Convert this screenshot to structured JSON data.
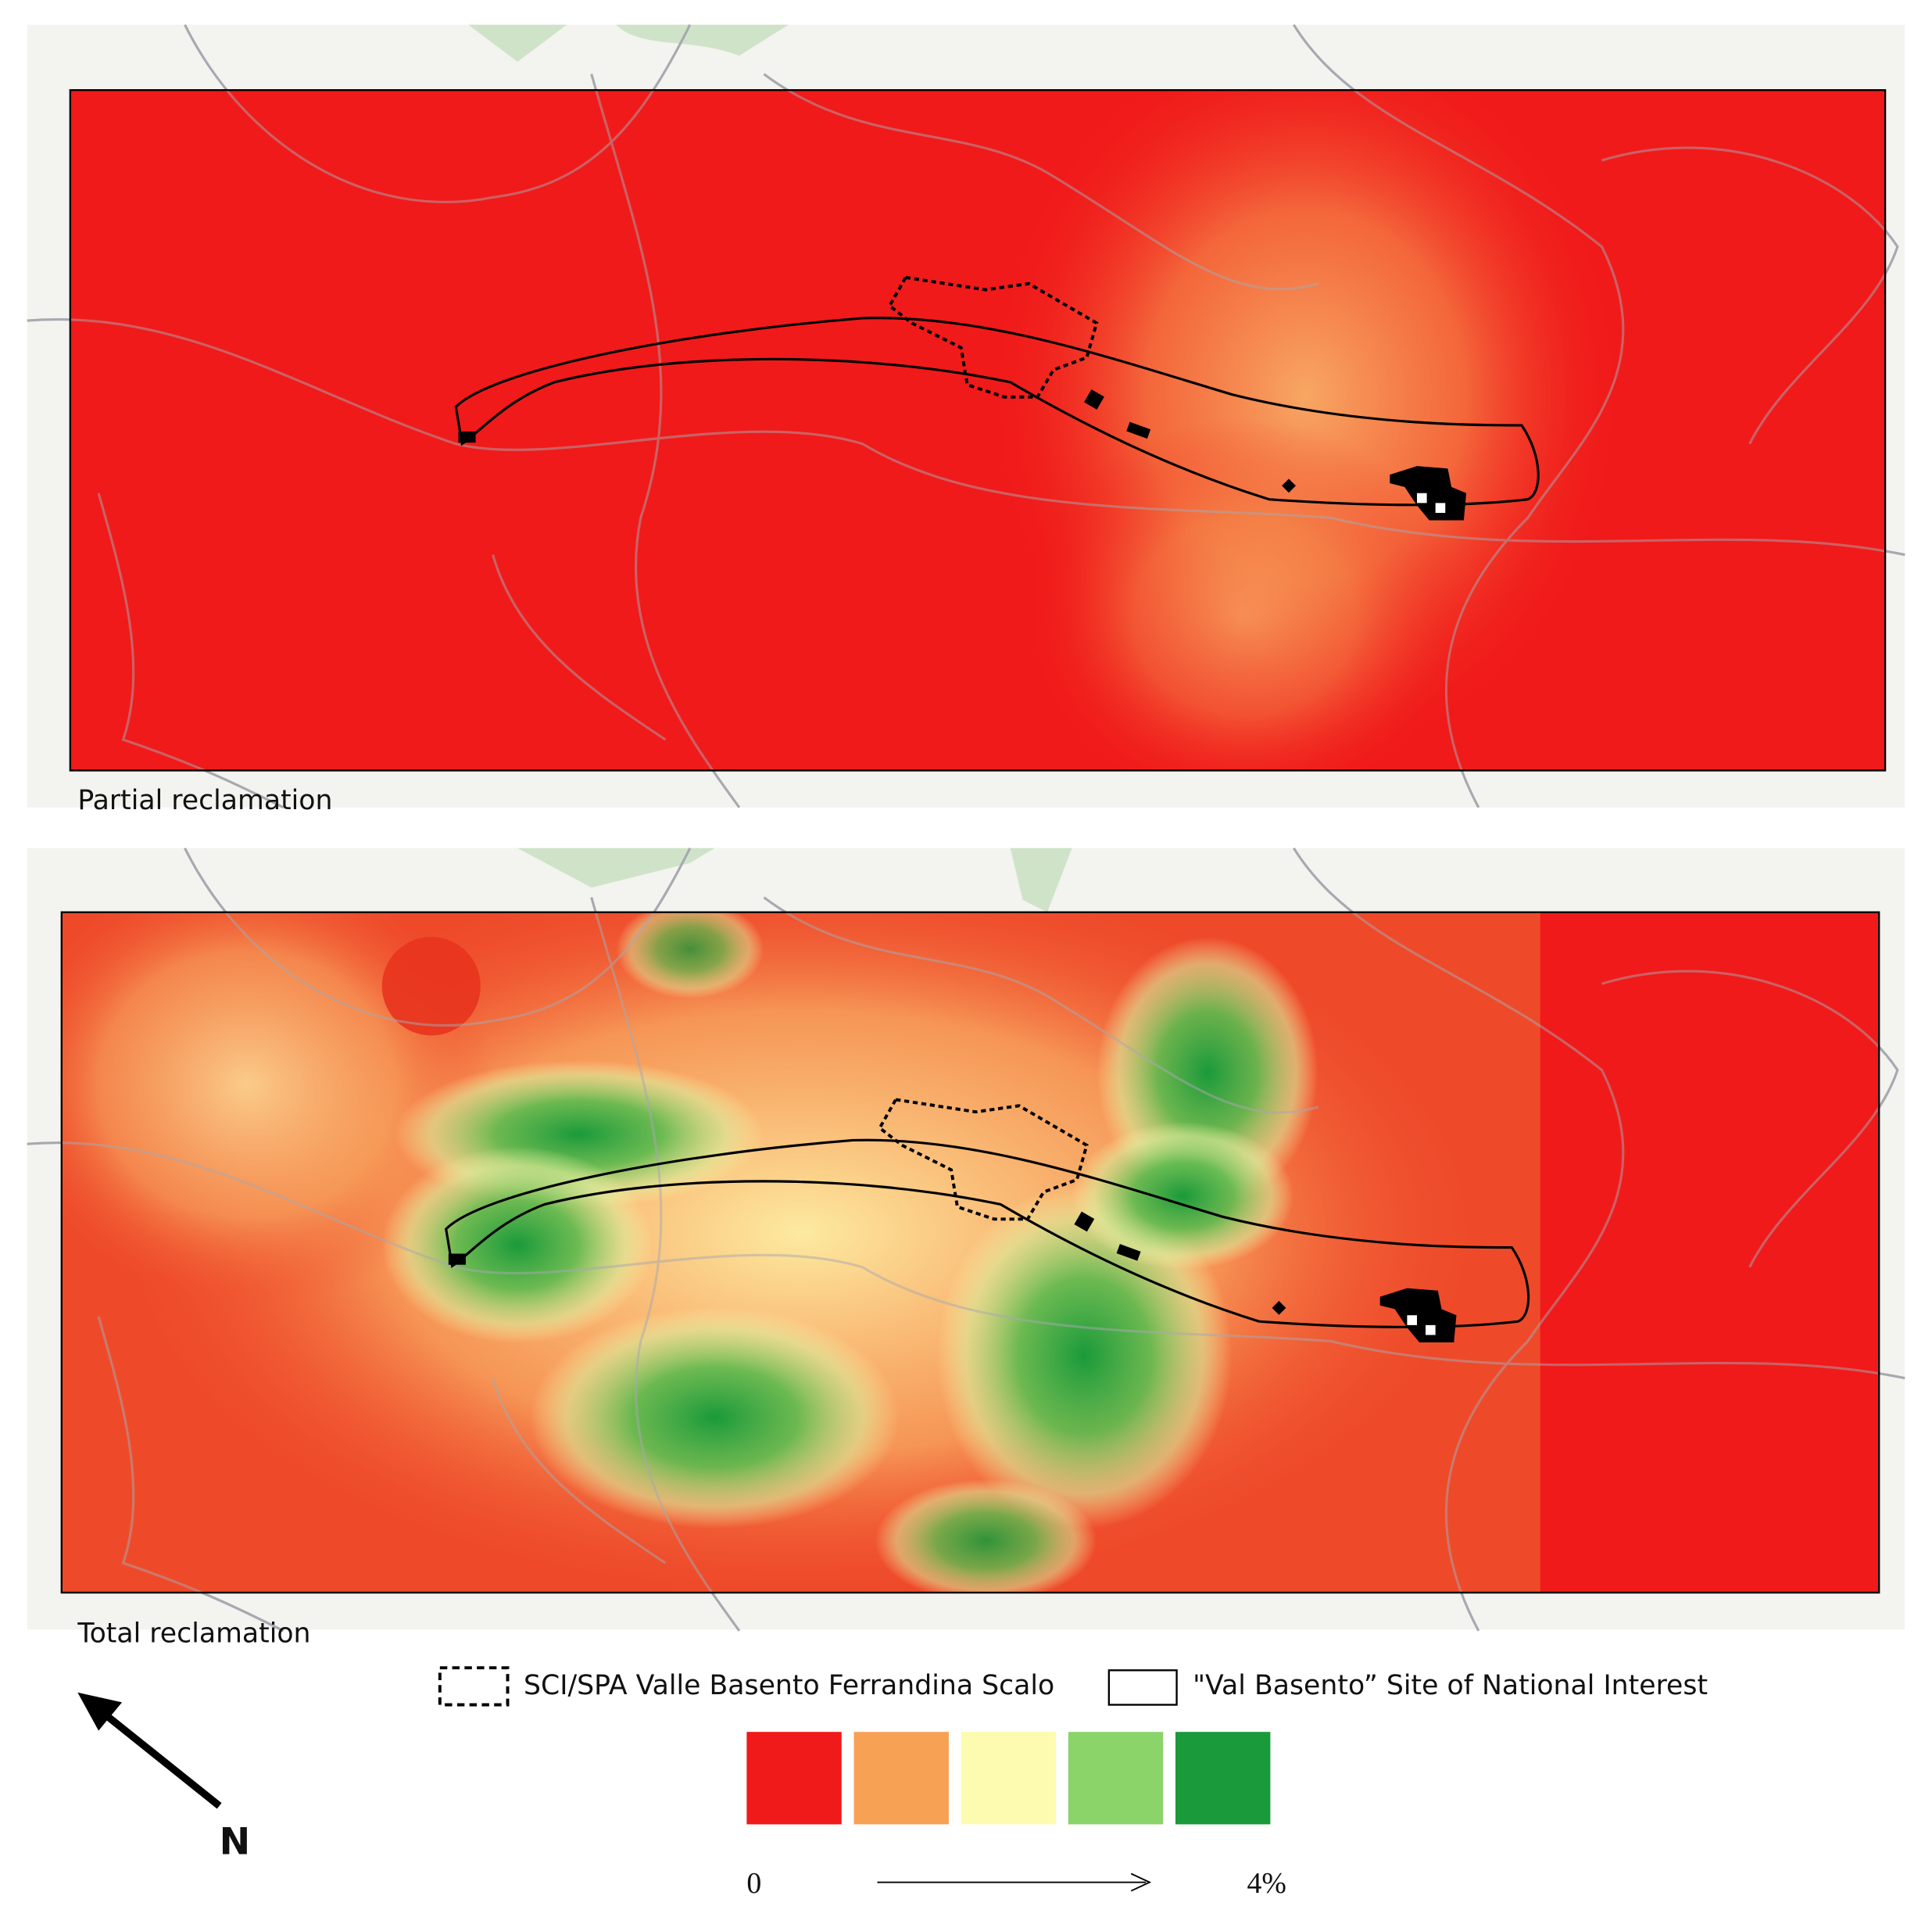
{
  "panels": [
    {
      "label": "Partial reclamation"
    },
    {
      "label": "Total reclamation"
    }
  ],
  "legend": {
    "items": [
      {
        "label": "SCI/SPA Valle Basento Ferrandina Scalo",
        "style": "dashed"
      },
      {
        "label": "\"Val Basento” Site of National Interest",
        "style": "solid"
      }
    ],
    "scale": {
      "colors": [
        "#f01a1a",
        "#f7a155",
        "#fdfbb0",
        "#8ad46a",
        "#1a9a3a"
      ],
      "min": "0",
      "max": "4%"
    }
  },
  "north_arrow": "N"
}
